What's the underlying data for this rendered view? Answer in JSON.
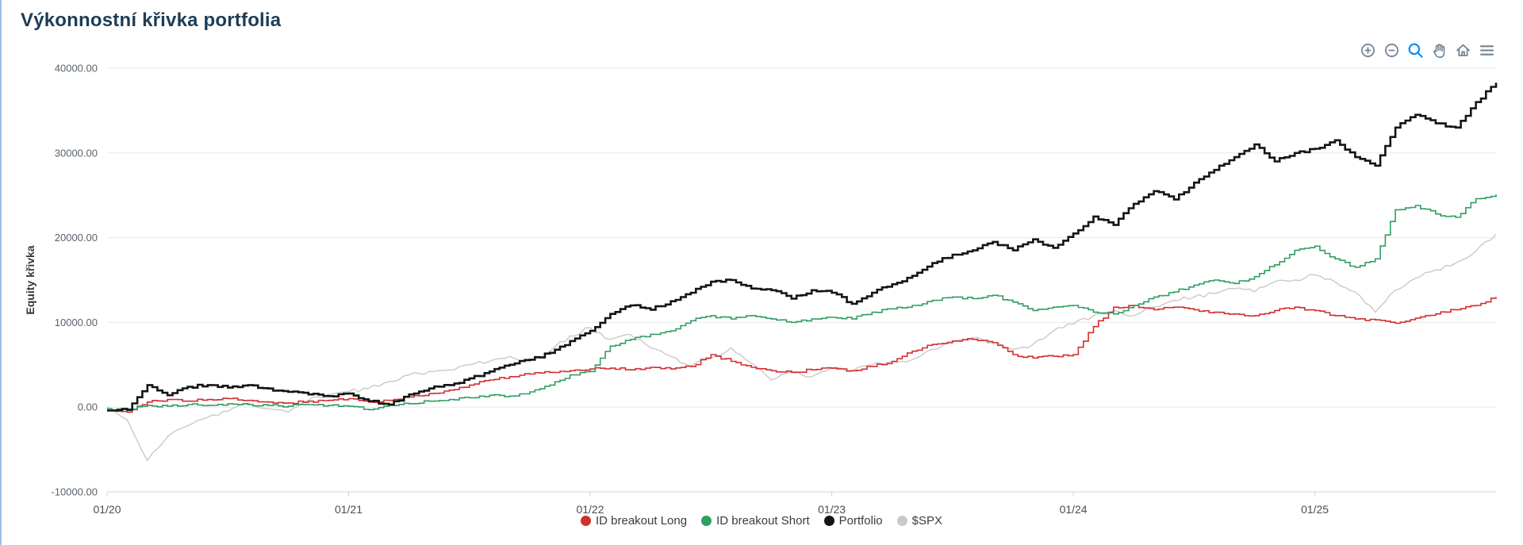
{
  "page": {
    "title": "Výkonnostní křivka portfolia",
    "background": "#ffffff",
    "title_color": "#1e3c55"
  },
  "toolbar": {
    "icon_color": "#6e8192",
    "active_color": "#008ffb",
    "icons": [
      {
        "name": "zoom-in-icon",
        "active": false
      },
      {
        "name": "zoom-out-icon",
        "active": false
      },
      {
        "name": "selection-zoom-icon",
        "active": true
      },
      {
        "name": "pan-icon",
        "active": false
      },
      {
        "name": "home-icon",
        "active": false
      },
      {
        "name": "menu-icon",
        "active": false
      }
    ]
  },
  "chart_data": {
    "type": "line",
    "title": "Výkonnostní křivka portfolia",
    "xlabel": "",
    "ylabel": "Equity křivka",
    "x_start": "01/2020",
    "x_interval": "month",
    "x_tick_labels": [
      "01/20",
      "01/21",
      "01/22",
      "01/23",
      "01/24",
      "01/25"
    ],
    "x_tick_month_indices": [
      0,
      12,
      24,
      36,
      48,
      60
    ],
    "ylim": [
      -10000,
      40000
    ],
    "y_ticks": [
      40000,
      30000,
      20000,
      10000,
      0,
      -10000
    ],
    "y_tick_labels": [
      "40000.00",
      "30000.00",
      "20000.00",
      "10000.00",
      "0.00",
      "-10000.00"
    ],
    "grid": "horizontal",
    "legend_position": "bottom",
    "series": [
      {
        "name": "ID breakout Long",
        "color": "#d22f2f",
        "style": "step",
        "width": 1.6,
        "jitter": 280,
        "z": 1,
        "values": [
          -400,
          -600,
          600,
          900,
          700,
          900,
          1000,
          800,
          600,
          500,
          700,
          800,
          1000,
          600,
          800,
          1200,
          1600,
          2000,
          2600,
          3200,
          3600,
          3900,
          4100,
          4300,
          4500,
          4600,
          4400,
          4700,
          4500,
          4800,
          6200,
          5400,
          4700,
          4300,
          4100,
          4400,
          4600,
          4300,
          4800,
          5400,
          6600,
          7400,
          7800,
          8000,
          7600,
          6200,
          5800,
          6000,
          6200,
          9500,
          11800,
          12000,
          11500,
          11800,
          11500,
          11200,
          11000,
          10800,
          11400,
          11800,
          11400,
          10800,
          10400,
          10300,
          9900,
          10500,
          11000,
          11500,
          12000,
          13000
        ]
      },
      {
        "name": "ID breakout Short",
        "color": "#2f9e62",
        "style": "step",
        "width": 1.6,
        "jitter": 280,
        "z": 2,
        "values": [
          -200,
          -400,
          200,
          100,
          300,
          200,
          400,
          300,
          200,
          100,
          300,
          200,
          100,
          -300,
          200,
          400,
          700,
          900,
          1100,
          1400,
          1300,
          1800,
          2600,
          3800,
          4200,
          7200,
          8000,
          8600,
          9000,
          10200,
          10800,
          10400,
          10800,
          10400,
          10000,
          10400,
          10600,
          10400,
          11200,
          11600,
          12000,
          12600,
          13000,
          12800,
          13200,
          12400,
          11400,
          11800,
          12000,
          11200,
          11000,
          12000,
          13000,
          13600,
          14400,
          15000,
          14600,
          15400,
          16800,
          18500,
          19000,
          17500,
          16500,
          17500,
          23300,
          23800,
          22800,
          22400,
          24600,
          25100
        ]
      },
      {
        "name": "Portfolio",
        "color": "#141414",
        "style": "step",
        "width": 2.6,
        "jitter": 320,
        "z": 3,
        "values": [
          -400,
          -300,
          2600,
          1400,
          2400,
          2600,
          2300,
          2600,
          2200,
          1800,
          1500,
          1300,
          1600,
          700,
          300,
          1500,
          2200,
          2600,
          3400,
          4200,
          5000,
          5600,
          6400,
          7800,
          9000,
          11000,
          12000,
          11500,
          12500,
          13500,
          14800,
          15000,
          14000,
          13800,
          12800,
          13800,
          13500,
          12200,
          13500,
          14500,
          15500,
          17000,
          18000,
          18500,
          19500,
          18500,
          19800,
          18800,
          20500,
          22500,
          21500,
          24000,
          25500,
          24500,
          26500,
          28000,
          29500,
          31000,
          29000,
          30000,
          30500,
          31500,
          29500,
          28500,
          33000,
          34500,
          33500,
          33000,
          36000,
          38300
        ]
      },
      {
        "name": "$SPX",
        "color": "#c9c9c9",
        "style": "line",
        "width": 1.4,
        "jitter": 500,
        "z": 0,
        "values": [
          0,
          -1500,
          -6300,
          -3500,
          -2200,
          -1200,
          -500,
          500,
          -200,
          -600,
          800,
          1500,
          1800,
          2200,
          3000,
          3800,
          4200,
          4400,
          5000,
          5400,
          6000,
          5400,
          6600,
          8400,
          9400,
          8000,
          8600,
          7000,
          6000,
          4800,
          5800,
          7000,
          5200,
          3200,
          4200,
          3600,
          4600,
          4200,
          5000,
          5400,
          5600,
          6800,
          7800,
          8200,
          7600,
          6800,
          7400,
          9000,
          9800,
          10800,
          11400,
          10800,
          11800,
          12600,
          13000,
          13400,
          14000,
          13600,
          14800,
          15000,
          15600,
          14800,
          13600,
          11200,
          13800,
          15200,
          16200,
          17000,
          18400,
          20400
        ]
      }
    ]
  }
}
